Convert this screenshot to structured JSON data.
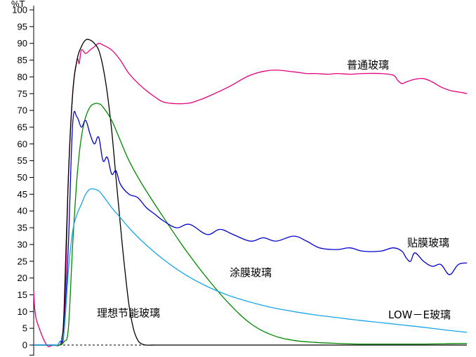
{
  "chart_data": {
    "type": "line",
    "ylabel": "%T",
    "ylim": [
      0,
      100
    ],
    "y_ticks": [
      0,
      5,
      10,
      15,
      20,
      25,
      30,
      35,
      40,
      45,
      50,
      55,
      60,
      65,
      70,
      75,
      80,
      85,
      90,
      95,
      100
    ],
    "x_ticks_labeled": false,
    "xlim": [
      0,
      100
    ],
    "grid": false,
    "baseline_dashed": true,
    "series": [
      {
        "name": "普通玻璃",
        "color": "#e6007e",
        "x": [
          0,
          0.3,
          1,
          3,
          4.5,
          6,
          6.8,
          7.3,
          8,
          9,
          10,
          10.5,
          11,
          12,
          13,
          14,
          15,
          16,
          18,
          20,
          22,
          25,
          28,
          30,
          33,
          36,
          38,
          40,
          45,
          50,
          55,
          60,
          63,
          65,
          68,
          70,
          73,
          76,
          80,
          83,
          84,
          85,
          86,
          88,
          90,
          92,
          94,
          96,
          98,
          99,
          100
        ],
        "values": [
          16,
          10,
          6,
          0,
          0,
          0,
          2,
          15,
          50,
          75,
          85,
          84,
          88,
          87,
          88,
          89,
          90,
          89.5,
          88,
          85,
          81,
          77,
          74,
          72.5,
          72,
          72.2,
          73,
          74,
          77,
          80.5,
          82,
          81.5,
          81,
          81,
          80.8,
          81,
          80.8,
          81,
          81,
          80.5,
          79,
          78,
          78.5,
          79.3,
          79.5,
          78.5,
          77,
          76,
          75.5,
          75.3,
          75
        ]
      },
      {
        "name": "理想节能玻璃",
        "color": "#000000",
        "x": [
          0,
          1,
          3,
          4.5,
          6,
          6.5,
          7,
          8,
          9,
          10,
          11,
          12,
          13,
          14,
          15,
          16,
          17,
          18,
          19,
          20,
          21,
          22,
          23,
          24,
          25,
          26,
          28,
          30,
          40,
          60,
          80,
          100
        ],
        "values": [
          0,
          0,
          0,
          0,
          0,
          2,
          10,
          50,
          75,
          85,
          89,
          91,
          91,
          90,
          88,
          83,
          75,
          64,
          50,
          36,
          23,
          12,
          5,
          1.5,
          0.3,
          0,
          0,
          0,
          0,
          0,
          0,
          0
        ]
      },
      {
        "name": "涂膜玻璃",
        "color": "#008800",
        "x": [
          0,
          3,
          5,
          5.5,
          6,
          7,
          8,
          9,
          10,
          11,
          12,
          13,
          14,
          15,
          16,
          18,
          20,
          22,
          25,
          30,
          35,
          40,
          45,
          50,
          55,
          60,
          65,
          70,
          75,
          80,
          85,
          90,
          95,
          100
        ],
        "values": [
          0,
          0,
          0,
          0,
          0,
          1,
          5,
          30,
          50,
          62,
          68,
          71,
          72,
          72,
          71,
          67,
          61,
          55,
          48,
          38,
          28.5,
          20,
          12.5,
          6.5,
          3,
          1.4,
          0.8,
          0.5,
          0.3,
          0.3,
          0.3,
          0.3,
          0.4,
          0.5
        ]
      },
      {
        "name": "贴膜玻璃",
        "color": "#0000d0",
        "x": [
          0,
          3,
          5,
          5.5,
          6,
          7,
          8,
          9,
          10,
          11,
          12,
          13,
          14,
          15,
          16,
          17,
          18,
          19,
          20,
          22,
          24,
          26,
          28,
          30,
          33,
          36,
          40,
          43,
          46,
          50,
          53,
          56,
          60,
          63,
          66,
          70,
          73,
          76,
          80,
          83,
          85,
          86,
          87,
          88,
          90,
          92,
          94,
          96,
          98,
          100
        ],
        "values": [
          0,
          0,
          0,
          0,
          1,
          4,
          30,
          66,
          68,
          65,
          67,
          63,
          60,
          62,
          55,
          56,
          51,
          52,
          48,
          45,
          44,
          41,
          39,
          37,
          35,
          36,
          33,
          34.5,
          33,
          31,
          32,
          31,
          32.5,
          31,
          29,
          28.5,
          29,
          28,
          28,
          29,
          28,
          26,
          25,
          27.5,
          25,
          23.5,
          24,
          21,
          24,
          24.5
        ]
      },
      {
        "name": "LOW－E玻璃",
        "color": "#1aa6e8",
        "x": [
          0,
          3,
          5,
          5.5,
          6,
          7,
          8,
          9,
          10,
          11,
          12,
          13,
          14,
          15,
          16,
          18,
          20,
          22,
          25,
          30,
          35,
          40,
          45,
          50,
          55,
          60,
          65,
          70,
          75,
          80,
          85,
          90,
          95,
          100
        ],
        "values": [
          0,
          0,
          0,
          0,
          1,
          4,
          22,
          34,
          39,
          42,
          45,
          46.5,
          46.5,
          46,
          44.5,
          41,
          38,
          35,
          31,
          25.5,
          21,
          17.5,
          14.8,
          12.8,
          11.2,
          10,
          9,
          8.2,
          7.4,
          6.7,
          6,
          5.3,
          4.5,
          3.8
        ]
      }
    ]
  }
}
